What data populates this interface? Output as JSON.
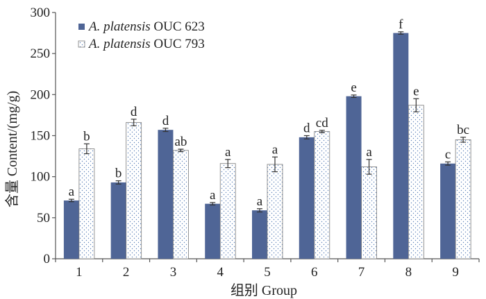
{
  "chart_data": {
    "type": "bar",
    "title": "",
    "xlabel": "组别 Group",
    "ylabel": "含量 Content/(mg/g)",
    "ylim": [
      0,
      300
    ],
    "yticks": [
      0,
      50,
      100,
      150,
      200,
      250,
      300
    ],
    "categories": [
      "1",
      "2",
      "3",
      "4",
      "5",
      "6",
      "7",
      "8",
      "9"
    ],
    "legend_position": "top-left",
    "series": [
      {
        "name_italic": "A. platensis",
        "name_rest": " OUC 623",
        "color": "#4f6596",
        "values": [
          71,
          93,
          157,
          67,
          59,
          148,
          198,
          275,
          116
        ],
        "errors": [
          1.5,
          2,
          2,
          1.5,
          2,
          2,
          1.5,
          1.5,
          2
        ],
        "letters": [
          "a",
          "b",
          "d",
          "a",
          "a",
          "d",
          "e",
          "f",
          "c"
        ]
      },
      {
        "name_italic": "A. platensis",
        "name_rest": " OUC 793",
        "color": "#ffffff",
        "values": [
          134,
          166,
          132,
          116,
          115,
          155,
          112,
          187,
          145
        ],
        "errors": [
          6,
          4,
          1.5,
          5,
          9,
          1.5,
          9,
          8,
          3
        ],
        "letters": [
          "b",
          "d",
          "ab",
          "a",
          "a",
          "cd",
          "a",
          "e",
          "bc"
        ]
      }
    ]
  }
}
